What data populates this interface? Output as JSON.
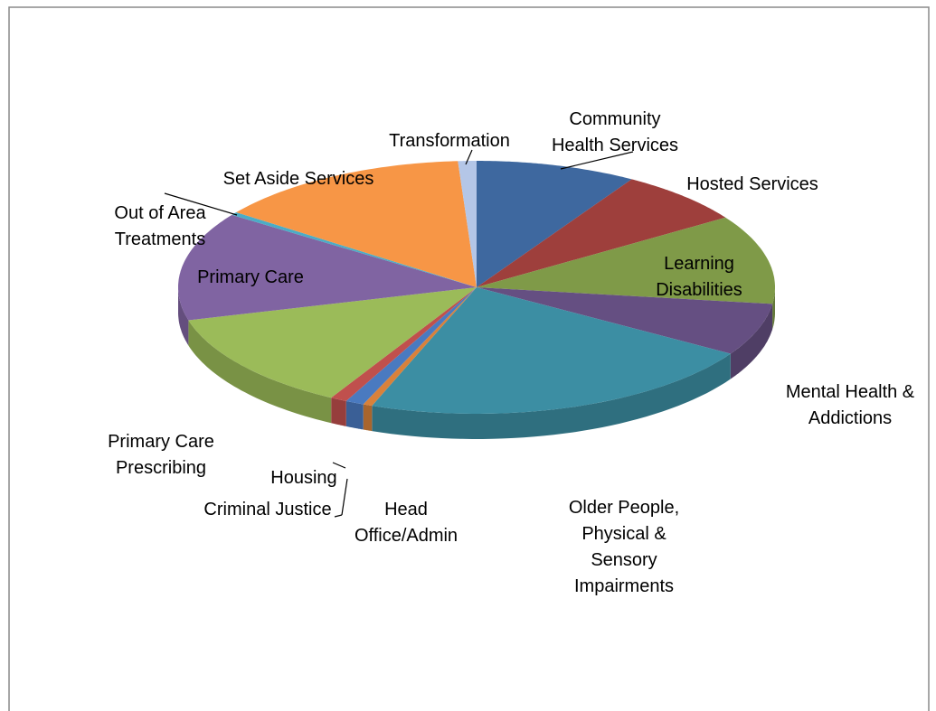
{
  "chart_data": {
    "type": "pie",
    "categories": [
      "Community Health Services",
      "Hosted Services",
      "Learning Disabilities",
      "Mental Health & Addictions",
      "Older People, Physical & Sensory Impairments",
      "Head Office/Admin",
      "Criminal Justice",
      "Housing",
      "Primary Care Prescribing",
      "Primary Care",
      "Out of Area Treatments",
      "Set Aside Services",
      "Transformation"
    ],
    "values": [
      8.7,
      7,
      11.4,
      6.7,
      21.9,
      0.5,
      1,
      0.9,
      12.7,
      13.9,
      0.4,
      13.9,
      1
    ],
    "colors": [
      "#3e689f",
      "#9e3f3c",
      "#7f9a48",
      "#654f82",
      "#3c8ea3",
      "#d9813a",
      "#4a7ac0",
      "#c0504d",
      "#9bbb59",
      "#8064a2",
      "#4bacc6",
      "#f79646",
      "#b4c6e7"
    ]
  }
}
